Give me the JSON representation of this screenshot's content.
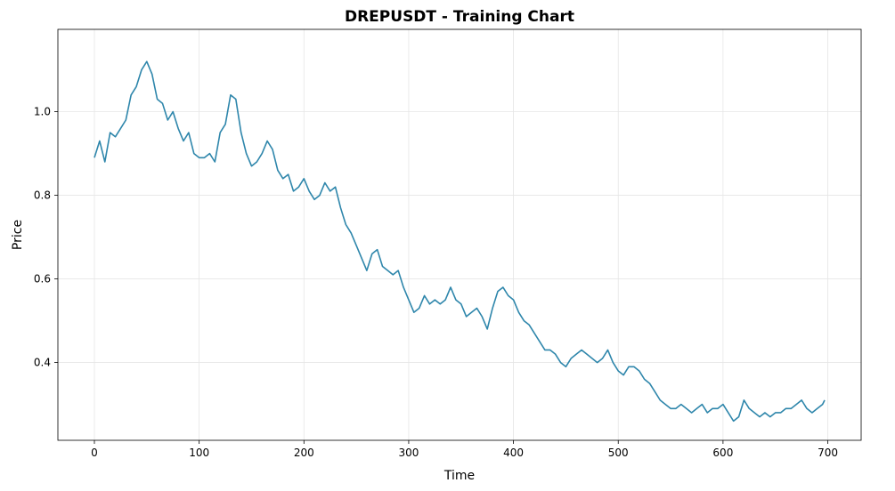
{
  "chart_data": {
    "type": "line",
    "title": "DREPUSDT - Training Chart",
    "x_label": "Time",
    "y_label": "Price",
    "x": [
      0,
      5,
      10,
      15,
      20,
      25,
      30,
      35,
      40,
      45,
      50,
      55,
      60,
      65,
      70,
      75,
      80,
      85,
      90,
      95,
      100,
      105,
      110,
      115,
      120,
      125,
      130,
      135,
      140,
      145,
      150,
      155,
      160,
      165,
      170,
      175,
      180,
      185,
      190,
      195,
      200,
      205,
      210,
      215,
      220,
      225,
      230,
      235,
      240,
      245,
      250,
      255,
      260,
      265,
      270,
      275,
      280,
      285,
      290,
      295,
      300,
      305,
      310,
      315,
      320,
      325,
      330,
      335,
      340,
      345,
      350,
      355,
      360,
      365,
      370,
      375,
      380,
      385,
      390,
      395,
      400,
      405,
      410,
      415,
      420,
      425,
      430,
      435,
      440,
      445,
      450,
      455,
      460,
      465,
      470,
      475,
      480,
      485,
      490,
      495,
      500,
      505,
      510,
      515,
      520,
      525,
      530,
      535,
      540,
      545,
      550,
      555,
      560,
      565,
      570,
      575,
      580,
      585,
      590,
      595,
      600,
      605,
      610,
      615,
      620,
      625,
      630,
      635,
      640,
      645,
      650,
      655,
      660,
      665,
      670,
      675,
      680,
      685,
      690,
      695,
      697
    ],
    "values": [
      0.89,
      0.93,
      0.88,
      0.95,
      0.94,
      0.96,
      0.98,
      1.04,
      1.06,
      1.1,
      1.12,
      1.09,
      1.03,
      1.02,
      0.98,
      1.0,
      0.96,
      0.93,
      0.95,
      0.9,
      0.89,
      0.89,
      0.9,
      0.88,
      0.95,
      0.97,
      1.04,
      1.03,
      0.95,
      0.9,
      0.87,
      0.88,
      0.9,
      0.93,
      0.91,
      0.86,
      0.84,
      0.85,
      0.81,
      0.82,
      0.84,
      0.81,
      0.79,
      0.8,
      0.83,
      0.81,
      0.82,
      0.77,
      0.73,
      0.71,
      0.68,
      0.65,
      0.62,
      0.66,
      0.67,
      0.63,
      0.62,
      0.61,
      0.62,
      0.58,
      0.55,
      0.52,
      0.53,
      0.56,
      0.54,
      0.55,
      0.54,
      0.55,
      0.58,
      0.55,
      0.54,
      0.51,
      0.52,
      0.53,
      0.51,
      0.48,
      0.53,
      0.57,
      0.58,
      0.56,
      0.55,
      0.52,
      0.5,
      0.49,
      0.47,
      0.45,
      0.43,
      0.43,
      0.42,
      0.4,
      0.39,
      0.41,
      0.42,
      0.43,
      0.42,
      0.41,
      0.4,
      0.41,
      0.43,
      0.4,
      0.38,
      0.37,
      0.39,
      0.39,
      0.38,
      0.36,
      0.35,
      0.33,
      0.31,
      0.3,
      0.29,
      0.29,
      0.3,
      0.29,
      0.28,
      0.29,
      0.3,
      0.28,
      0.29,
      0.29,
      0.3,
      0.28,
      0.26,
      0.27,
      0.31,
      0.29,
      0.28,
      0.27,
      0.28,
      0.27,
      0.28,
      0.28,
      0.29,
      0.29,
      0.3,
      0.31,
      0.29,
      0.28,
      0.29,
      0.3,
      0.31
    ],
    "color": "#2e86ab",
    "xlim": [
      -34.85,
      731.85
    ],
    "xticks": [
      0,
      100,
      200,
      300,
      400,
      500,
      600,
      700
    ],
    "ylim": [
      0.214,
      1.197
    ],
    "yticks": [
      0.4,
      0.6,
      0.8,
      {
        "value": 1,
        "label": "1.0"
      }
    ],
    "grid": true
  }
}
